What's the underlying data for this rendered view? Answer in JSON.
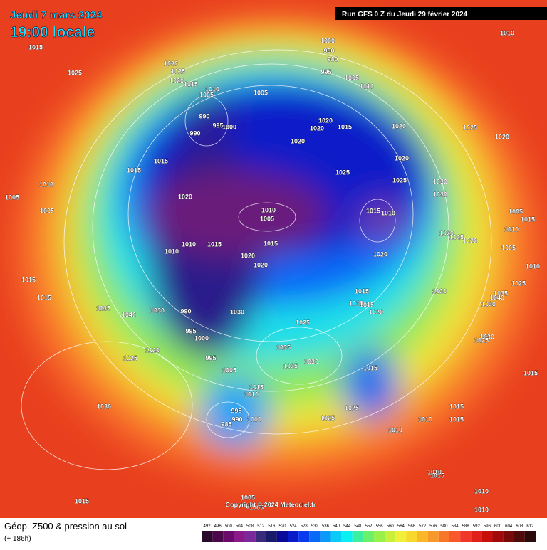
{
  "header": {
    "date": "Jeudi 7 mars 2024",
    "time": "19:00 locale",
    "run": "Run GFS 0 Z du Jeudi 29 février 2024"
  },
  "copyright": "Copyright © 2024 Meteociel.fr",
  "footer": {
    "title": "Géop. Z500 & pression au sol",
    "lead": "(+ 186h)"
  },
  "colorbar": {
    "values": [
      492,
      496,
      500,
      504,
      508,
      512,
      516,
      520,
      524,
      528,
      532,
      536,
      540,
      544,
      548,
      552,
      556,
      560,
      564,
      568,
      572,
      576,
      580,
      584,
      588,
      592,
      596,
      600,
      604,
      608,
      612
    ],
    "colors": [
      "#2a0a2a",
      "#4a0a4a",
      "#6a0a6a",
      "#8a1a8a",
      "#7a2a9a",
      "#3a2a7a",
      "#1a1a6a",
      "#0a0a9a",
      "#0a1ac8",
      "#0a3af0",
      "#0a6af8",
      "#0a9af8",
      "#0acaf8",
      "#0af0f0",
      "#3af0a0",
      "#6af06a",
      "#9af04a",
      "#c8f03a",
      "#f0f03a",
      "#f8d82a",
      "#f8b82a",
      "#f8982a",
      "#f8782a",
      "#f8582a",
      "#f0382a",
      "#e0201a",
      "#c8100a",
      "#a00a0a",
      "#780a0a",
      "#500a0a",
      "#2a0a0a"
    ]
  },
  "pressure_labels": [
    "1015",
    "1025",
    "1030",
    "1025",
    "1020",
    "1015",
    "1010",
    "1005",
    "1005",
    "990",
    "990",
    "995",
    "1000",
    "1000",
    "990",
    "980",
    "995",
    "1005",
    "1010",
    "1020",
    "1020",
    "1015",
    "1020",
    "1020",
    "1025",
    "1020",
    "1010",
    "1015",
    "1015",
    "1020",
    "1025",
    "1025",
    "1030",
    "1030",
    "1010",
    "1005",
    "1005",
    "1020",
    "1010",
    "1005",
    "1015",
    "1010",
    "1005",
    "1015",
    "1010",
    "1030",
    "1025",
    "1020",
    "1010",
    "1015",
    "1015",
    "1010",
    "1020",
    "1020",
    "1020",
    "1005",
    "1010",
    "1015",
    "1025",
    "1030",
    "1015",
    "1035",
    "1040",
    "1015",
    "1010",
    "1015",
    "1020",
    "1030",
    "1035",
    "1040",
    "1030",
    "990",
    "1030",
    "1025",
    "995",
    "1000",
    "1030",
    "1025",
    "1035",
    "1020",
    "1025",
    "995",
    "1035",
    "1030",
    "1005",
    "1015",
    "1015",
    "1015",
    "1010",
    "995",
    "990",
    "1000",
    "1030",
    "1025",
    "1025",
    "1015",
    "1015",
    "985",
    "1010",
    "1010",
    "1010",
    "1015",
    "1015",
    "1010",
    "1010",
    "1005",
    "1005"
  ]
}
